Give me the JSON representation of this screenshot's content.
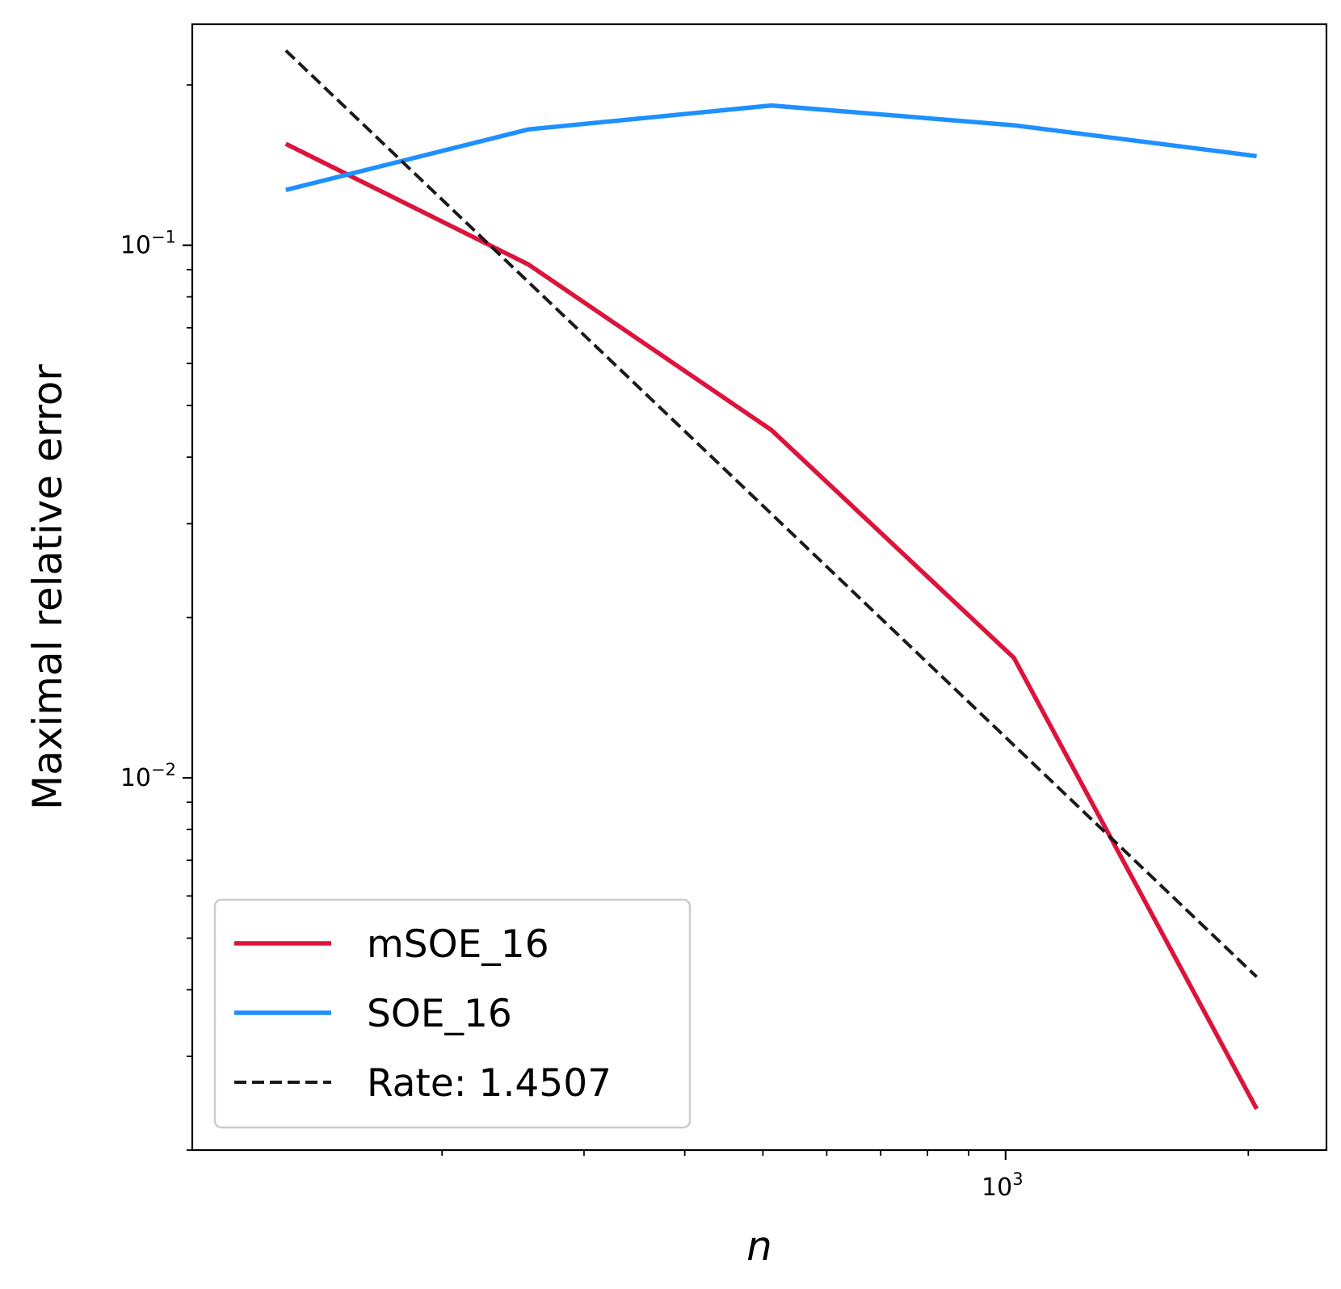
{
  "chart_data": {
    "type": "line",
    "xscale": "log",
    "yscale": "log",
    "xlabel": "n",
    "ylabel": "Maximal relative error",
    "xlim": [
      98,
      2500
    ],
    "ylim": [
      0.002,
      0.26
    ],
    "x": [
      128,
      256,
      512,
      1024,
      2048
    ],
    "xticks": [
      {
        "value": 1000,
        "base": "10",
        "exp": "3"
      }
    ],
    "yticks": [
      {
        "value": 0.1,
        "base": "10",
        "exp": "−1"
      },
      {
        "value": 0.01,
        "base": "10",
        "exp": "−2"
      }
    ],
    "series": [
      {
        "name": "mSOE_16",
        "color": "#dc143c",
        "style": "solid",
        "values": [
          0.155,
          0.092,
          0.045,
          0.0168,
          0.00239
        ]
      },
      {
        "name": "SOE_16",
        "color": "#1e90ff",
        "style": "solid",
        "values": [
          0.127,
          0.165,
          0.183,
          0.168,
          0.147
        ]
      },
      {
        "name": "Rate: 1.4507",
        "color": "#1a1a1a",
        "style": "dashed",
        "x": [
          128,
          2048
        ],
        "values": [
          0.232,
          0.00423
        ]
      }
    ],
    "legend": {
      "position": "lower-left",
      "entries": [
        "mSOE_16",
        "SOE_16",
        "Rate: 1.4507"
      ]
    }
  }
}
